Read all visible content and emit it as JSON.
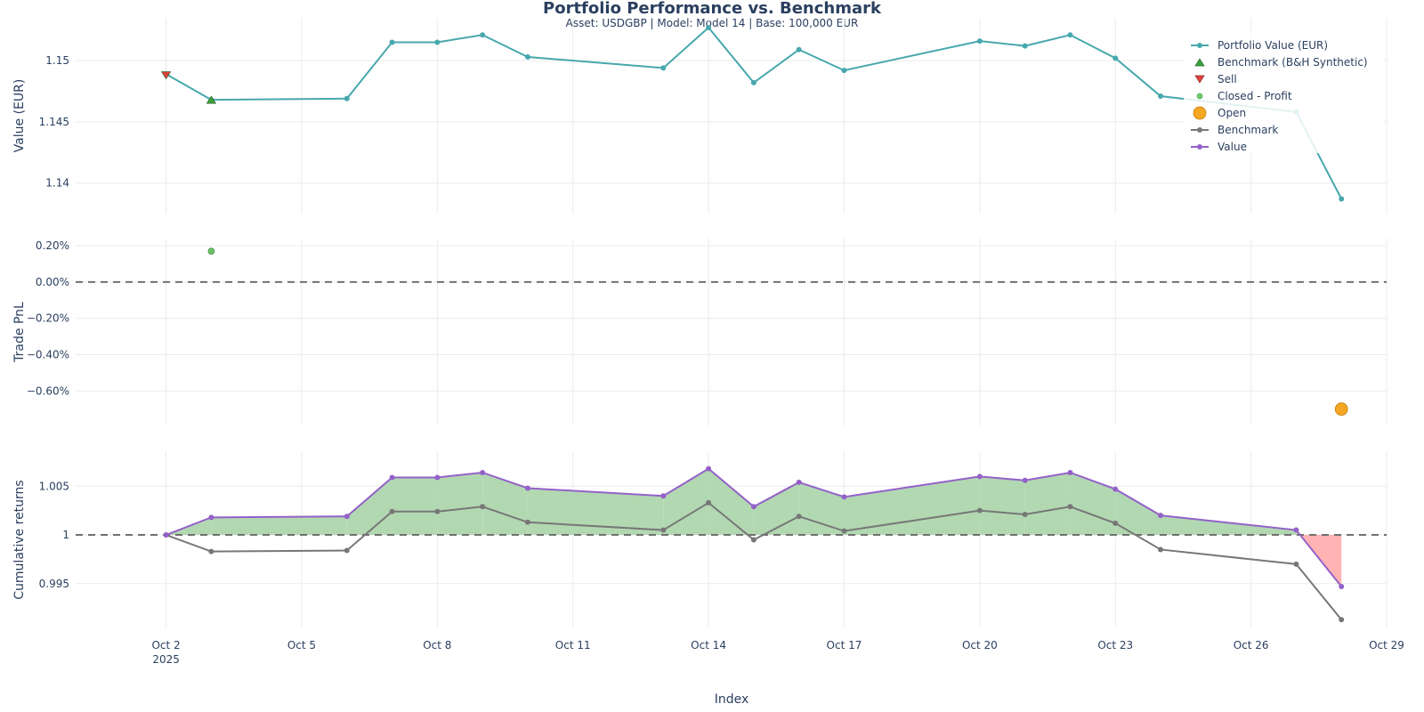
{
  "chart_data": {
    "type": "line",
    "title": "Portfolio Performance vs. Benchmark",
    "subtitle": "Asset: USDGBP | Model: Model 14 | Base: 100,000 EUR",
    "xlabel": "Index",
    "x_ticks": [
      "Oct 2",
      "Oct 5",
      "Oct 8",
      "Oct 11",
      "Oct 14",
      "Oct 17",
      "Oct 20",
      "Oct 23",
      "Oct 26",
      "Oct 29"
    ],
    "x_tick_year": "2025",
    "x_dates": [
      "2025-10-02",
      "2025-10-03",
      "2025-10-06",
      "2025-10-07",
      "2025-10-08",
      "2025-10-09",
      "2025-10-10",
      "2025-10-13",
      "2025-10-14",
      "2025-10-15",
      "2025-10-16",
      "2025-10-17",
      "2025-10-20",
      "2025-10-21",
      "2025-10-22",
      "2025-10-23",
      "2025-10-24",
      "2025-10-27",
      "2025-10-28"
    ],
    "xlim": [
      "2025-09-30",
      "2025-10-29"
    ],
    "legend": {
      "position": "top-right",
      "entries": [
        "Portfolio Value (EUR)",
        "Benchmark (B&H Synthetic)",
        "Sell",
        "Closed - Profit",
        "Open",
        "Benchmark",
        "Value"
      ]
    },
    "panels": [
      {
        "ylabel": "Value (EUR)",
        "ylim": [
          1.1375,
          1.1535
        ],
        "yticks": [
          1.14,
          1.145,
          1.15
        ],
        "ytick_labels": [
          "1.14",
          "1.145",
          "1.15"
        ],
        "series": [
          {
            "name": "Portfolio Value (EUR)",
            "color": "#47a8ad",
            "values": [
              1.1489,
              1.1468,
              1.1469,
              1.1515,
              1.1515,
              1.1521,
              1.1503,
              1.1494,
              1.1527,
              1.1482,
              1.1509,
              1.1492,
              1.1516,
              1.1512,
              1.1521,
              1.1502,
              1.1471,
              1.1458,
              1.1387
            ]
          }
        ],
        "markers": [
          {
            "name": "Sell",
            "date": "2025-10-02",
            "value": 1.1488,
            "color": "#e0403a",
            "symbol": "triangle-down"
          },
          {
            "name": "Benchmark (B&H Synthetic)",
            "date": "2025-10-03",
            "value": 1.1468,
            "color": "#3aa33a",
            "symbol": "triangle-up"
          }
        ]
      },
      {
        "ylabel": "Trade PnL",
        "ylim": [
          -0.0079,
          0.0024
        ],
        "yticks": [
          -0.006,
          -0.004,
          -0.002,
          0,
          0.002
        ],
        "ytick_labels": [
          "−0.60%",
          "−0.40%",
          "−0.20%",
          "0.00%",
          "0.20%"
        ],
        "zero_line": 0,
        "points": [
          {
            "name": "Closed - Profit",
            "date": "2025-10-03",
            "value": 0.0017,
            "color": "#6cc46c"
          },
          {
            "name": "Open",
            "date": "2025-10-28",
            "value": -0.007,
            "color": "#f5a623"
          }
        ]
      },
      {
        "ylabel": "Cumulative returns",
        "ylim": [
          0.9905,
          1.0085
        ],
        "yticks": [
          0.995,
          1,
          1.005
        ],
        "ytick_labels": [
          "0.995",
          "1",
          "1.005"
        ],
        "baseline": 1,
        "series": [
          {
            "name": "Benchmark",
            "color": "#777777",
            "values": [
              1.0,
              0.9983,
              0.9984,
              1.0024,
              1.0024,
              1.0029,
              1.0013,
              1.0005,
              1.0033,
              0.9995,
              1.0019,
              1.0004,
              1.0025,
              1.0021,
              1.0029,
              1.0012,
              0.9985,
              0.997,
              0.9913
            ]
          },
          {
            "name": "Value",
            "color": "#9461c9",
            "values": [
              1.0,
              1.0018,
              1.0019,
              1.0059,
              1.0059,
              1.0064,
              1.0048,
              1.004,
              1.0068,
              1.0029,
              1.0054,
              1.0039,
              1.006,
              1.0056,
              1.0064,
              1.0047,
              1.002,
              1.0005,
              0.9947
            ]
          }
        ],
        "fill_colors": {
          "above": "#b2d8b2",
          "below": "#ffb3b3"
        }
      }
    ]
  }
}
